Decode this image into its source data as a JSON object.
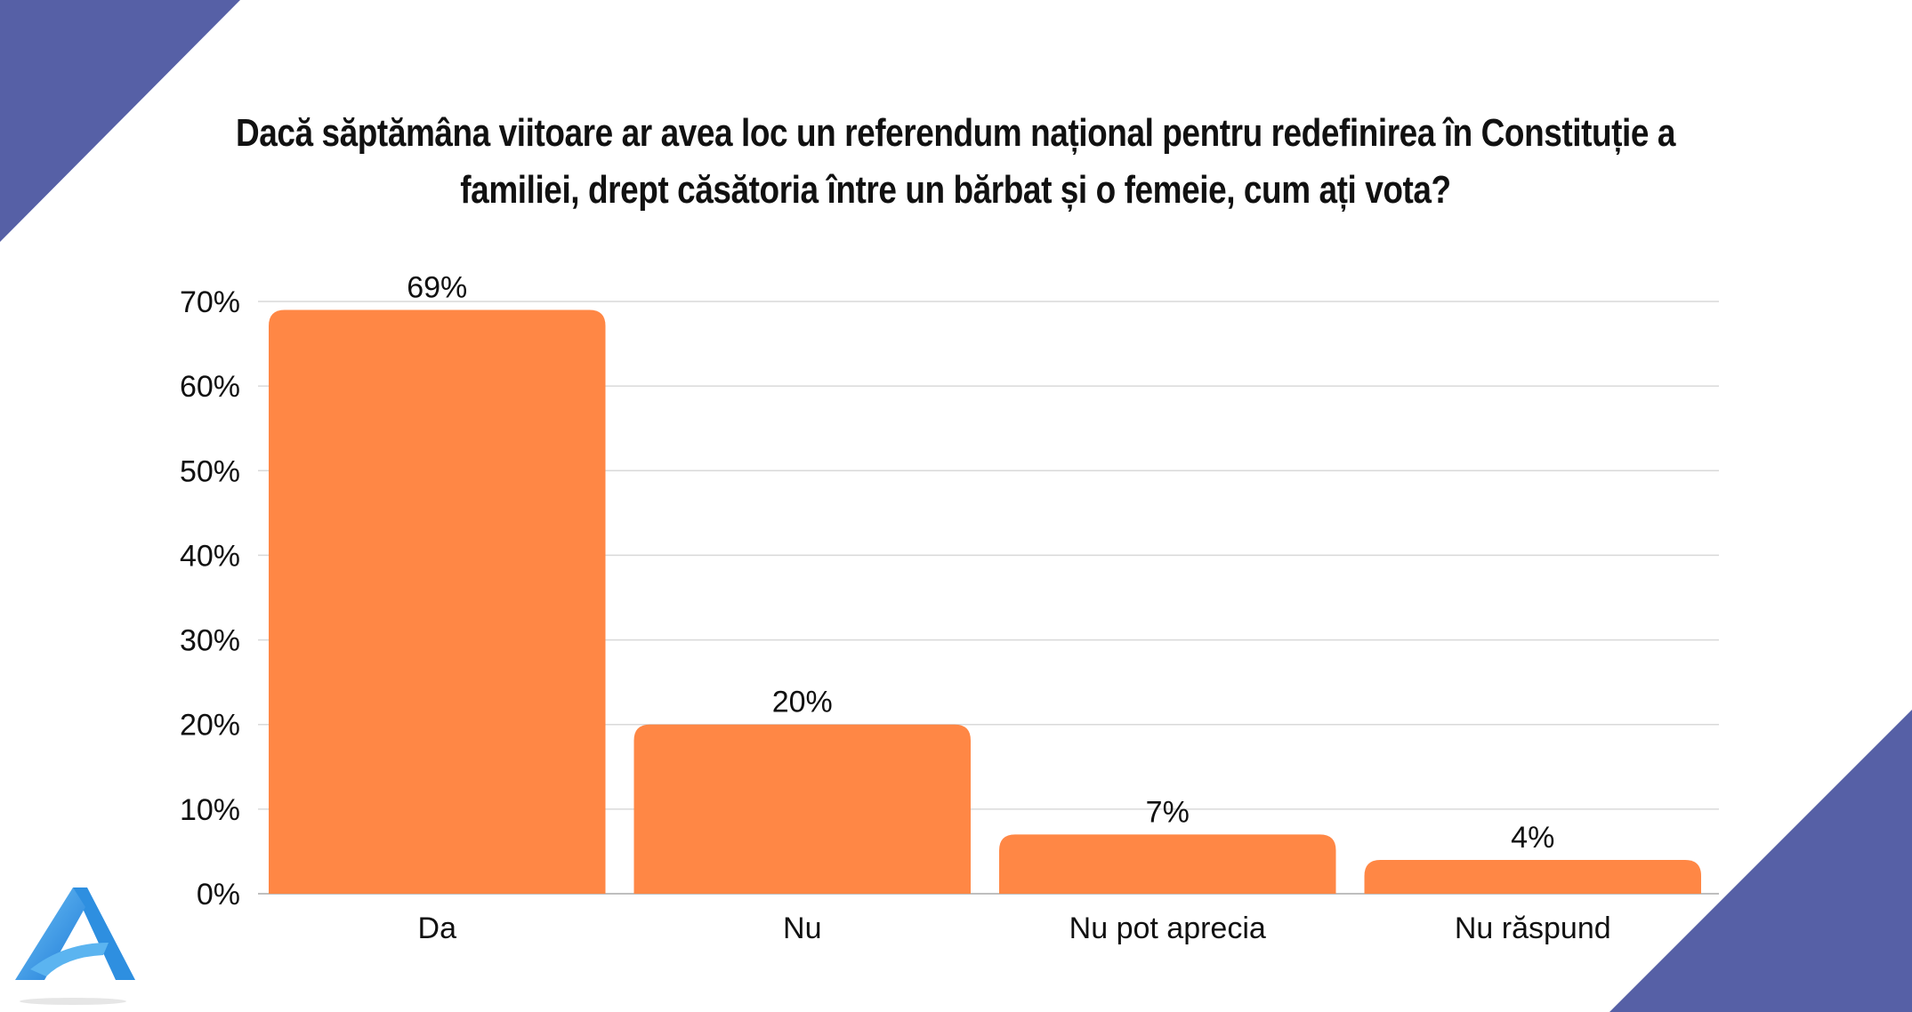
{
  "chart_data": {
    "type": "bar",
    "title": "Dacă săptămâna viitoare ar avea loc un referendum național pentru redefinirea în Constituție a familiei, drept căsătoria între un bărbat și o femeie, cum ați vota?",
    "categories": [
      "Da",
      "Nu",
      "Nu pot aprecia",
      "Nu răspund"
    ],
    "values": [
      69,
      20,
      7,
      4
    ],
    "data_labels": [
      "69%",
      "20%",
      "7%",
      "4%"
    ],
    "ylim": [
      0,
      70
    ],
    "yticks": [
      0,
      10,
      20,
      30,
      40,
      50,
      60,
      70
    ],
    "ytick_labels": [
      "0%",
      "10%",
      "20%",
      "30%",
      "40%",
      "50%",
      "60%",
      "70%"
    ],
    "xlabel": "",
    "ylabel": "",
    "grid": true,
    "legend": "none"
  },
  "colors": {
    "bar": "#FF8745",
    "gridline": "#D9D9D9",
    "accent_triangle": "#5660A6",
    "logo_blue": "#2E8FE0"
  },
  "icons": {
    "logo": "letter-a-logo-icon"
  }
}
